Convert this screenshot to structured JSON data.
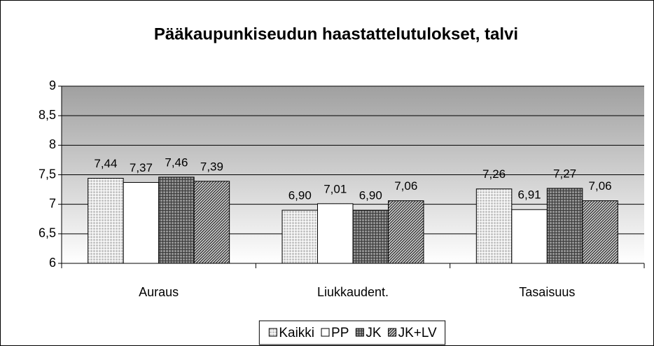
{
  "chart_data": {
    "type": "bar",
    "title": "Pääkaupunkiseudun haastattelutulokset, talvi",
    "categories": [
      "Auraus",
      "Liukkaudent.",
      "Tasaisuus"
    ],
    "series": [
      {
        "name": "Kaikki",
        "color": "#c8c8c8",
        "values": [
          7.44,
          6.9,
          7.26
        ],
        "value_labels": [
          "7,44",
          "6,90",
          "7,26"
        ]
      },
      {
        "name": "PP",
        "color": "#ffffff",
        "values": [
          7.37,
          7.01,
          6.91
        ],
        "value_labels": [
          "7,37",
          "7,01",
          "6,91"
        ]
      },
      {
        "name": "JK",
        "color": "#909090",
        "values": [
          7.46,
          6.9,
          7.27
        ],
        "value_labels": [
          "7,46",
          "6,90",
          "7,27"
        ]
      },
      {
        "name": "JK+LV",
        "color": "#c8c8c8",
        "values": [
          7.39,
          7.06,
          7.06
        ],
        "value_labels": [
          "7,39",
          "7,06",
          "7,06"
        ]
      }
    ],
    "ylim": [
      6,
      9
    ],
    "yticks": [
      6,
      {
        "value": 6.5,
        "label": "6,5"
      },
      7,
      {
        "value": 7.5,
        "label": "7,5"
      },
      8,
      {
        "value": 8.5,
        "label": "8,5"
      },
      9
    ],
    "grid": true,
    "legend": "bottom"
  }
}
